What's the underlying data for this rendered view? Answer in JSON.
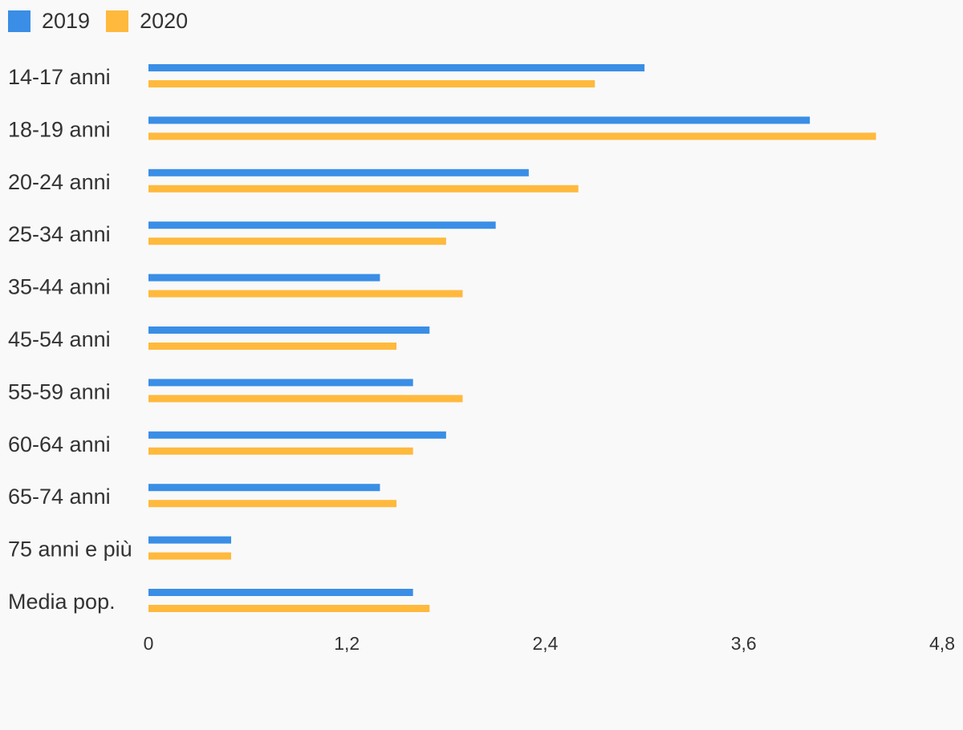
{
  "colors": {
    "2019": "#3a8ee6",
    "2020": "#ffb93d"
  },
  "chart_data": {
    "type": "bar",
    "orientation": "horizontal",
    "categories": [
      "14-17 anni",
      "18-19 anni",
      "20-24 anni",
      "25-34 anni",
      "35-44 anni",
      "45-54 anni",
      "55-59 anni",
      "60-64 anni",
      "65-74 anni",
      "75 anni e più",
      "Media pop."
    ],
    "series": [
      {
        "name": "2019",
        "color": "#3a8ee6",
        "values": [
          3.0,
          4.0,
          2.3,
          2.1,
          1.4,
          1.7,
          1.6,
          1.8,
          1.4,
          0.5,
          1.6
        ]
      },
      {
        "name": "2020",
        "color": "#ffb93d",
        "values": [
          2.7,
          4.4,
          2.6,
          1.8,
          1.9,
          1.5,
          1.9,
          1.6,
          1.5,
          0.5,
          1.7
        ]
      }
    ],
    "xlim": [
      0,
      4.8
    ],
    "x_ticks": [
      "0",
      "1,2",
      "2,4",
      "3,6",
      "4,8"
    ],
    "grid": false,
    "legend_position": "top-left"
  }
}
